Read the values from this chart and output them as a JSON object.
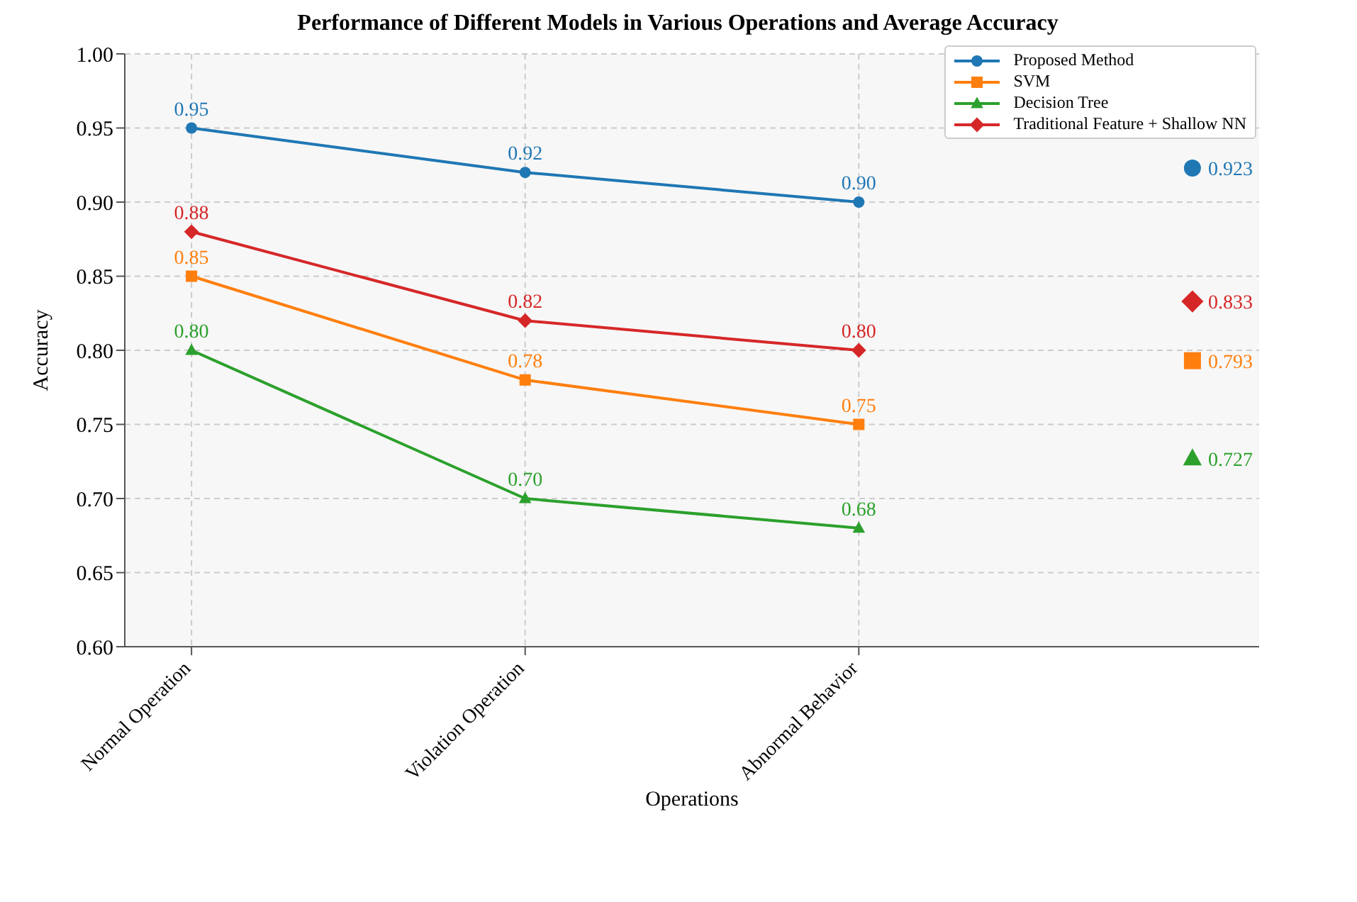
{
  "chart_data": {
    "type": "line",
    "title": "Performance of Different Models in Various Operations and Average Accuracy",
    "xlabel": "Operations",
    "ylabel": "Accuracy",
    "categories": [
      "Normal Operation",
      "Violation Operation",
      "Abnormal Behavior",
      null
    ],
    "series": [
      {
        "name": "Proposed Method",
        "color": "#1f77b4",
        "marker": "circle",
        "values": [
          0.95,
          0.92,
          0.9,
          null
        ],
        "value_labels": [
          "0.95",
          "0.92",
          "0.90",
          null
        ]
      },
      {
        "name": "SVM",
        "color": "#ff7f0e",
        "marker": "square",
        "values": [
          0.85,
          0.78,
          0.75,
          null
        ],
        "value_labels": [
          "0.85",
          "0.78",
          "0.75",
          null
        ]
      },
      {
        "name": "Decision Tree",
        "color": "#2ca02c",
        "marker": "triangle",
        "values": [
          0.8,
          0.7,
          0.68,
          null
        ],
        "value_labels": [
          "0.80",
          "0.70",
          "0.68",
          null
        ]
      },
      {
        "name": "Traditional Feature + Shallow NN",
        "color": "#d62728",
        "marker": "diamond",
        "values": [
          0.88,
          0.82,
          0.8,
          null
        ],
        "value_labels": [
          "0.88",
          "0.82",
          "0.80",
          null
        ]
      },
      {
        "type": "scatter",
        "color": "#1f77b4",
        "marker": "circle",
        "values": [
          null,
          null,
          null,
          0.923
        ],
        "value_labels": [
          null,
          null,
          null,
          "0.923"
        ]
      },
      {
        "type": "scatter",
        "color": "#ff7f0e",
        "marker": "square",
        "values": [
          null,
          null,
          null,
          0.793
        ],
        "value_labels": [
          null,
          null,
          null,
          "0.793"
        ]
      },
      {
        "type": "scatter",
        "color": "#2ca02c",
        "marker": "triangle",
        "values": [
          null,
          null,
          null,
          0.727
        ],
        "value_labels": [
          null,
          null,
          null,
          "0.727"
        ]
      },
      {
        "type": "scatter",
        "color": "#d62728",
        "marker": "diamond",
        "values": [
          null,
          null,
          null,
          0.833
        ],
        "value_labels": [
          null,
          null,
          null,
          "0.833"
        ]
      }
    ],
    "ylim": [
      0.6,
      1.0
    ],
    "yticks": [
      {
        "value": 0.6,
        "label": "0.60"
      },
      {
        "value": 0.65,
        "label": "0.65"
      },
      {
        "value": 0.7,
        "label": "0.70"
      },
      {
        "value": 0.75,
        "label": "0.75"
      },
      {
        "value": 0.8,
        "label": "0.80"
      },
      {
        "value": 0.85,
        "label": "0.85"
      },
      {
        "value": 0.9,
        "label": "0.90"
      },
      {
        "value": 0.95,
        "label": "0.95"
      },
      {
        "value": 1.0,
        "label": "1.00"
      }
    ],
    "grid": true,
    "legend": "top right",
    "line_style": "solid"
  }
}
